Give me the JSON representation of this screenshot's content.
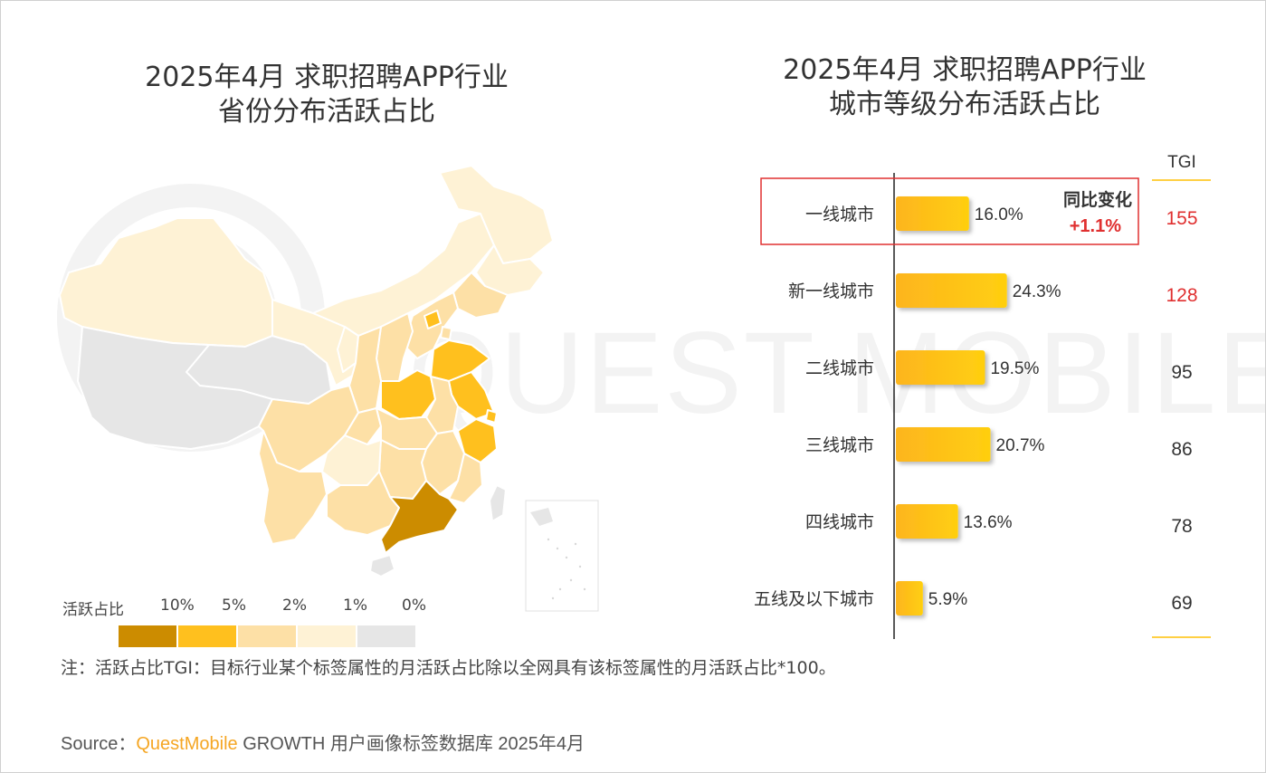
{
  "left_panel": {
    "title_line1": "2025年4月 求职招聘APP行业",
    "title_line2": "省份分布活跃占比",
    "legend": {
      "label": "活跃占比",
      "levels": [
        {
          "label": "10%",
          "color": "#cc8c00"
        },
        {
          "label": "5%",
          "color": "#ffc01e"
        },
        {
          "label": "2%",
          "color": "#fde0a6"
        },
        {
          "label": "1%",
          "color": "#fef2d5"
        },
        {
          "label": "0%",
          "color": "#e6e6e6"
        }
      ]
    }
  },
  "right_panel": {
    "title_line1": "2025年4月 求职招聘APP行业",
    "title_line2": "城市等级分布活跃占比",
    "tgi_header": "TGI",
    "yoy_label": "同比变化",
    "yoy_value": "+1.1%",
    "highlight_color": "#e03030",
    "bar_color": "#ffc107"
  },
  "chart_data": {
    "type": "bar",
    "orientation": "horizontal",
    "categories": [
      "一线城市",
      "新一线城市",
      "二线城市",
      "三线城市",
      "四线城市",
      "五线及以下城市"
    ],
    "values": [
      16.0,
      24.3,
      19.5,
      20.7,
      13.6,
      5.9
    ],
    "value_labels": [
      "16.0%",
      "24.3%",
      "19.5%",
      "20.7%",
      "13.6%",
      "5.9%"
    ],
    "tgi": [
      155,
      128,
      95,
      86,
      78,
      69
    ],
    "tgi_colors": [
      "#e03030",
      "#e03030",
      "#333333",
      "#333333",
      "#333333",
      "#333333"
    ],
    "ylim": [
      0,
      30
    ]
  },
  "watermark": "QUEST MOBILE",
  "note": "注：活跃占比TGI：目标行业某个标签属性的月活跃占比除以全网具有该标签属性的月活跃占比*100。",
  "source": {
    "prefix": "Source：",
    "brand": "QuestMobile",
    "suffix": "GROWTH 用户画像标签数据库 2025年4月"
  }
}
